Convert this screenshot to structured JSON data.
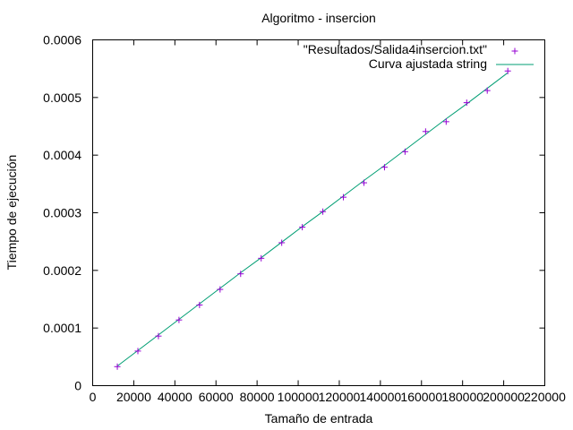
{
  "chart_data": {
    "type": "scatter",
    "title": "Algoritmo - insercion",
    "xlabel": "Tamaño de entrada",
    "ylabel": "Tiempo de ejecución",
    "xlim": [
      0,
      220000
    ],
    "ylim": [
      0,
      0.0006
    ],
    "x_ticks": [
      0,
      20000,
      40000,
      60000,
      80000,
      100000,
      120000,
      140000,
      160000,
      180000,
      200000,
      220000
    ],
    "x_tick_labels": [
      "0",
      "20000",
      "40000",
      "60000",
      "80000",
      "100000",
      "120000",
      "140000",
      "160000",
      "180000",
      "200000",
      "220000"
    ],
    "y_ticks": [
      0,
      0.0001,
      0.0002,
      0.0003,
      0.0004,
      0.0005,
      0.0006
    ],
    "y_tick_labels": [
      "0",
      "0.0001",
      "0.0002",
      "0.0003",
      "0.0004",
      "0.0005",
      "0.0006"
    ],
    "grid": false,
    "legend_position": "top-right",
    "series": [
      {
        "name": "\"Resultados/Salida4insercion.txt\"",
        "kind": "points",
        "marker": "plus",
        "color": "#9400d3",
        "x": [
          12000,
          22000,
          32000,
          42000,
          52000,
          62000,
          72000,
          82000,
          92000,
          102000,
          112000,
          122000,
          132000,
          142000,
          152000,
          162000,
          172000,
          182000,
          192000,
          202000
        ],
        "y": [
          3.3e-05,
          6e-05,
          8.6e-05,
          0.000114,
          0.00014,
          0.000167,
          0.000194,
          0.000221,
          0.000248,
          0.000275,
          0.000302,
          0.000327,
          0.000352,
          0.000379,
          0.000406,
          0.000441,
          0.000458,
          0.000491,
          0.000512,
          0.000546
        ]
      },
      {
        "name": "Curva ajustada string",
        "kind": "line",
        "color": "#009e73",
        "x": [
          12000,
          22000,
          32000,
          42000,
          52000,
          62000,
          72000,
          82000,
          92000,
          102000,
          112000,
          122000,
          132000,
          142000,
          152000,
          162000,
          172000,
          182000,
          192000,
          202000
        ],
        "y": [
          3.4e-05,
          6.1e-05,
          8.8e-05,
          0.000115,
          0.000142,
          0.000169,
          0.000196,
          0.000222,
          0.000249,
          0.000276,
          0.000302,
          0.000329,
          0.000356,
          0.000382,
          0.000409,
          0.000436,
          0.000463,
          0.000489,
          0.000516,
          0.000543
        ]
      }
    ]
  }
}
